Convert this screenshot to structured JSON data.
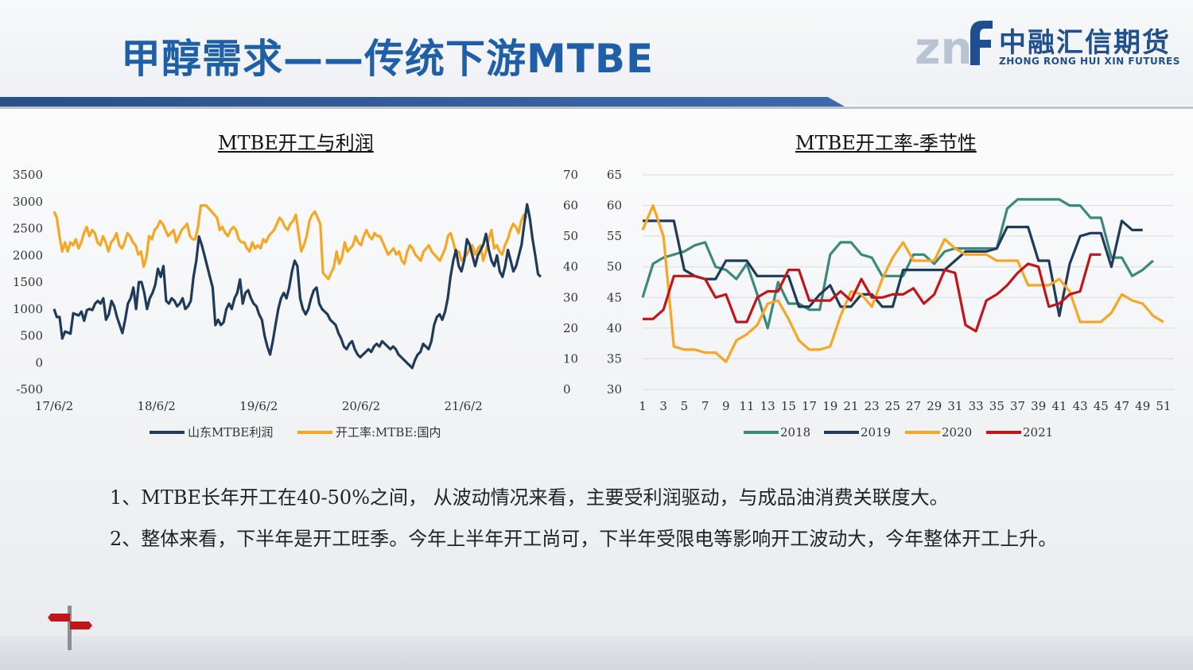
{
  "header": {
    "title": "甲醇需求——传统下游MTBE",
    "logo_cn": "中融汇信期货",
    "logo_en": "ZHONG RONG HUI XIN FUTURES"
  },
  "colors": {
    "profit": "#1f3a5a",
    "rate": "#f5a623",
    "s2018": "#3a8a7a",
    "s2019": "#1f3a5a",
    "s2020": "#f5a623",
    "s2021": "#c0161b"
  },
  "chart_data": [
    {
      "type": "line",
      "title": "MTBE开工与利润",
      "x_ticks": [
        "17/6/2",
        "18/6/2",
        "19/6/2",
        "20/6/2",
        "21/6/2"
      ],
      "y_left_ticks": [
        "3500",
        "3000",
        "2500",
        "2000",
        "1500",
        "1000",
        "500",
        "0",
        "-500"
      ],
      "y_right_ticks": [
        "70",
        "60",
        "50",
        "40",
        "30",
        "20",
        "10",
        "0"
      ],
      "ylim_left": [
        -500,
        3500
      ],
      "ylim_right": [
        0,
        70
      ],
      "x_range": [
        0,
        224
      ],
      "legend": [
        "山东MTBE利润",
        "开工率:MTBE:国内"
      ],
      "legend_position": "bottom",
      "series": [
        {
          "name": "山东MTBE利润",
          "axis": "left",
          "values": [
            1000,
            850,
            850,
            450,
            580,
            560,
            540,
            920,
            900,
            880,
            950,
            780,
            980,
            1000,
            980,
            1100,
            1150,
            1100,
            1200,
            800,
            900,
            1150,
            1050,
            850,
            700,
            550,
            800,
            1100,
            1200,
            1400,
            1000,
            1500,
            1500,
            1300,
            1000,
            1200,
            1300,
            1450,
            1750,
            1600,
            1800,
            1150,
            1100,
            1200,
            1150,
            1050,
            1100,
            1200,
            1000,
            1050,
            1150,
            1600,
            1900,
            2350,
            2200,
            2000,
            1800,
            1600,
            1400,
            700,
            800,
            700,
            750,
            1000,
            1100,
            1000,
            1200,
            1300,
            1550,
            1100,
            1300,
            1350,
            1200,
            1100,
            1050,
            900,
            800,
            500,
            300,
            150,
            400,
            700,
            1000,
            1200,
            1300,
            1200,
            1400,
            1700,
            1900,
            1800,
            1200,
            1000,
            900,
            1000,
            1200,
            1350,
            1400,
            1100,
            1000,
            950,
            900,
            800,
            750,
            700,
            550,
            450,
            300,
            250,
            350,
            400,
            250,
            150,
            100,
            150,
            200,
            250,
            200,
            300,
            350,
            300,
            400,
            350,
            300,
            250,
            300,
            250,
            150,
            100,
            50,
            0,
            -50,
            -100,
            50,
            150,
            200,
            350,
            300,
            250,
            400,
            700,
            850,
            900,
            800,
            950,
            1200,
            1600,
            1900,
            2100,
            1800,
            1700,
            1900,
            2300,
            2200,
            2000,
            1800,
            2000,
            2100,
            2200,
            2400,
            2100,
            1900,
            1800,
            2000,
            1700,
            1600,
            1800,
            2100,
            1900,
            1700,
            1800,
            2000,
            2200,
            2600,
            2950,
            2700,
            2300,
            2000,
            1650,
            1600
          ],
          "x_step": 1.234
        },
        {
          "name": "开工率:MTBE:国内",
          "axis": "right",
          "values": [
            58,
            56,
            50,
            45,
            48,
            45,
            48,
            47,
            49,
            46,
            48,
            51,
            53,
            50,
            52,
            51,
            48,
            47,
            50,
            48,
            45,
            48,
            49,
            51,
            47,
            46,
            48,
            51,
            50,
            48,
            47,
            44,
            45,
            40,
            43,
            50,
            49,
            52,
            53,
            55,
            54,
            52,
            50,
            51,
            52,
            48,
            50,
            52,
            53,
            54,
            50,
            49,
            49,
            53,
            60,
            60,
            60,
            59,
            58,
            57,
            56,
            52,
            53,
            51,
            50,
            52,
            53,
            52,
            49,
            48,
            48,
            46,
            45,
            48,
            46,
            47,
            46,
            49,
            48,
            50,
            51,
            52,
            54,
            56,
            55,
            53,
            52,
            54,
            55,
            57,
            51,
            45,
            47,
            50,
            55,
            57,
            58,
            56,
            54,
            38,
            37,
            36,
            38,
            40,
            45,
            41,
            43,
            48,
            45,
            46,
            47,
            50,
            48,
            47,
            50,
            52,
            50,
            49,
            51,
            50,
            50,
            48,
            46,
            44,
            45,
            46,
            44,
            45,
            42,
            41,
            45,
            47,
            46,
            44,
            43,
            42,
            45,
            46,
            47,
            45,
            44,
            43,
            42,
            44,
            46,
            50,
            51,
            48,
            44,
            45,
            42,
            43,
            44,
            46,
            47,
            44,
            46,
            47,
            42,
            45,
            49,
            52,
            46,
            47,
            45,
            44,
            47,
            49,
            52,
            54,
            53,
            51,
            55,
            57,
            56
          ],
          "x_step": 1.226
        }
      ]
    },
    {
      "type": "line",
      "title": "MTBE开工率-季节性",
      "x_ticks": [
        "1",
        "3",
        "5",
        "7",
        "9",
        "11",
        "13",
        "15",
        "17",
        "19",
        "21",
        "23",
        "25",
        "27",
        "29",
        "31",
        "33",
        "35",
        "37",
        "39",
        "41",
        "43",
        "45",
        "47",
        "49",
        "51"
      ],
      "y_ticks": [
        "65",
        "60",
        "55",
        "50",
        "45",
        "40",
        "35",
        "30"
      ],
      "ylim": [
        30,
        65
      ],
      "x_range": [
        1,
        52
      ],
      "legend": [
        "2018",
        "2019",
        "2020",
        "2021"
      ],
      "legend_position": "bottom",
      "series": [
        {
          "name": "2018",
          "values": [
            45,
            50.5,
            51.5,
            52,
            52.5,
            53.5,
            54,
            50,
            49.5,
            48,
            50.5,
            45.5,
            40,
            47.5,
            44,
            44,
            43,
            43,
            52,
            54,
            54,
            52,
            51.5,
            48.5,
            48.5,
            48.5,
            52,
            52,
            50.5,
            52.5,
            53,
            53,
            53,
            53,
            53,
            59.5,
            61,
            61,
            61,
            61,
            61,
            60,
            60,
            58,
            58,
            51.5,
            51.5,
            48.5,
            49.5,
            51
          ]
        },
        {
          "name": "2019",
          "values": [
            57.5,
            57.5,
            57.5,
            57.5,
            49.5,
            48.5,
            48,
            48,
            51,
            51,
            51,
            48.5,
            48.5,
            48.5,
            48.5,
            43.5,
            43.5,
            45.5,
            47,
            43.5,
            43.5,
            45.5,
            45.5,
            43.5,
            43.5,
            49.5,
            49.5,
            49.5,
            49.5,
            49.5,
            51,
            52.5,
            52.5,
            52.5,
            53,
            56.5,
            56.5,
            56.5,
            51,
            51,
            42,
            50.5,
            55,
            55.5,
            55.5,
            50,
            57.5,
            56,
            56
          ]
        },
        {
          "name": "2020",
          "values": [
            56,
            60,
            55,
            37,
            36.5,
            36.5,
            36,
            36,
            34.5,
            38,
            39,
            40.5,
            44,
            44.5,
            41.5,
            38,
            36.5,
            36.5,
            37,
            42,
            46,
            45.5,
            43.5,
            48,
            51.5,
            54,
            51,
            51,
            51,
            54.5,
            53,
            52,
            52,
            52,
            51,
            51,
            51,
            47,
            47,
            47,
            48,
            46,
            41,
            41,
            41,
            42.5,
            45.5,
            44.5,
            44,
            42,
            41
          ]
        },
        {
          "name": "2021",
          "values": [
            41.5,
            41.5,
            43,
            48.5,
            48.5,
            48.5,
            48,
            45,
            45.5,
            41,
            41,
            45,
            46,
            46,
            49.5,
            49.5,
            44.5,
            44.5,
            44.5,
            46,
            44.5,
            48,
            45,
            45,
            45.5,
            45.5,
            46.5,
            44,
            45.5,
            49.5,
            49,
            40.5,
            39.5,
            44.5,
            45.5,
            47,
            49,
            50.5,
            50,
            43.5,
            44,
            45.5,
            46,
            52,
            52
          ]
        }
      ]
    }
  ],
  "bullets": [
    "1、MTBE长年开工在40-50%之间，  从波动情况来看，主要受利润驱动，与成品油消费关联度大。",
    "2、整体来看，下半年是开工旺季。今年上半年开工尚可，下半年受限电等影响开工波动大，今年整体开工上升。"
  ]
}
